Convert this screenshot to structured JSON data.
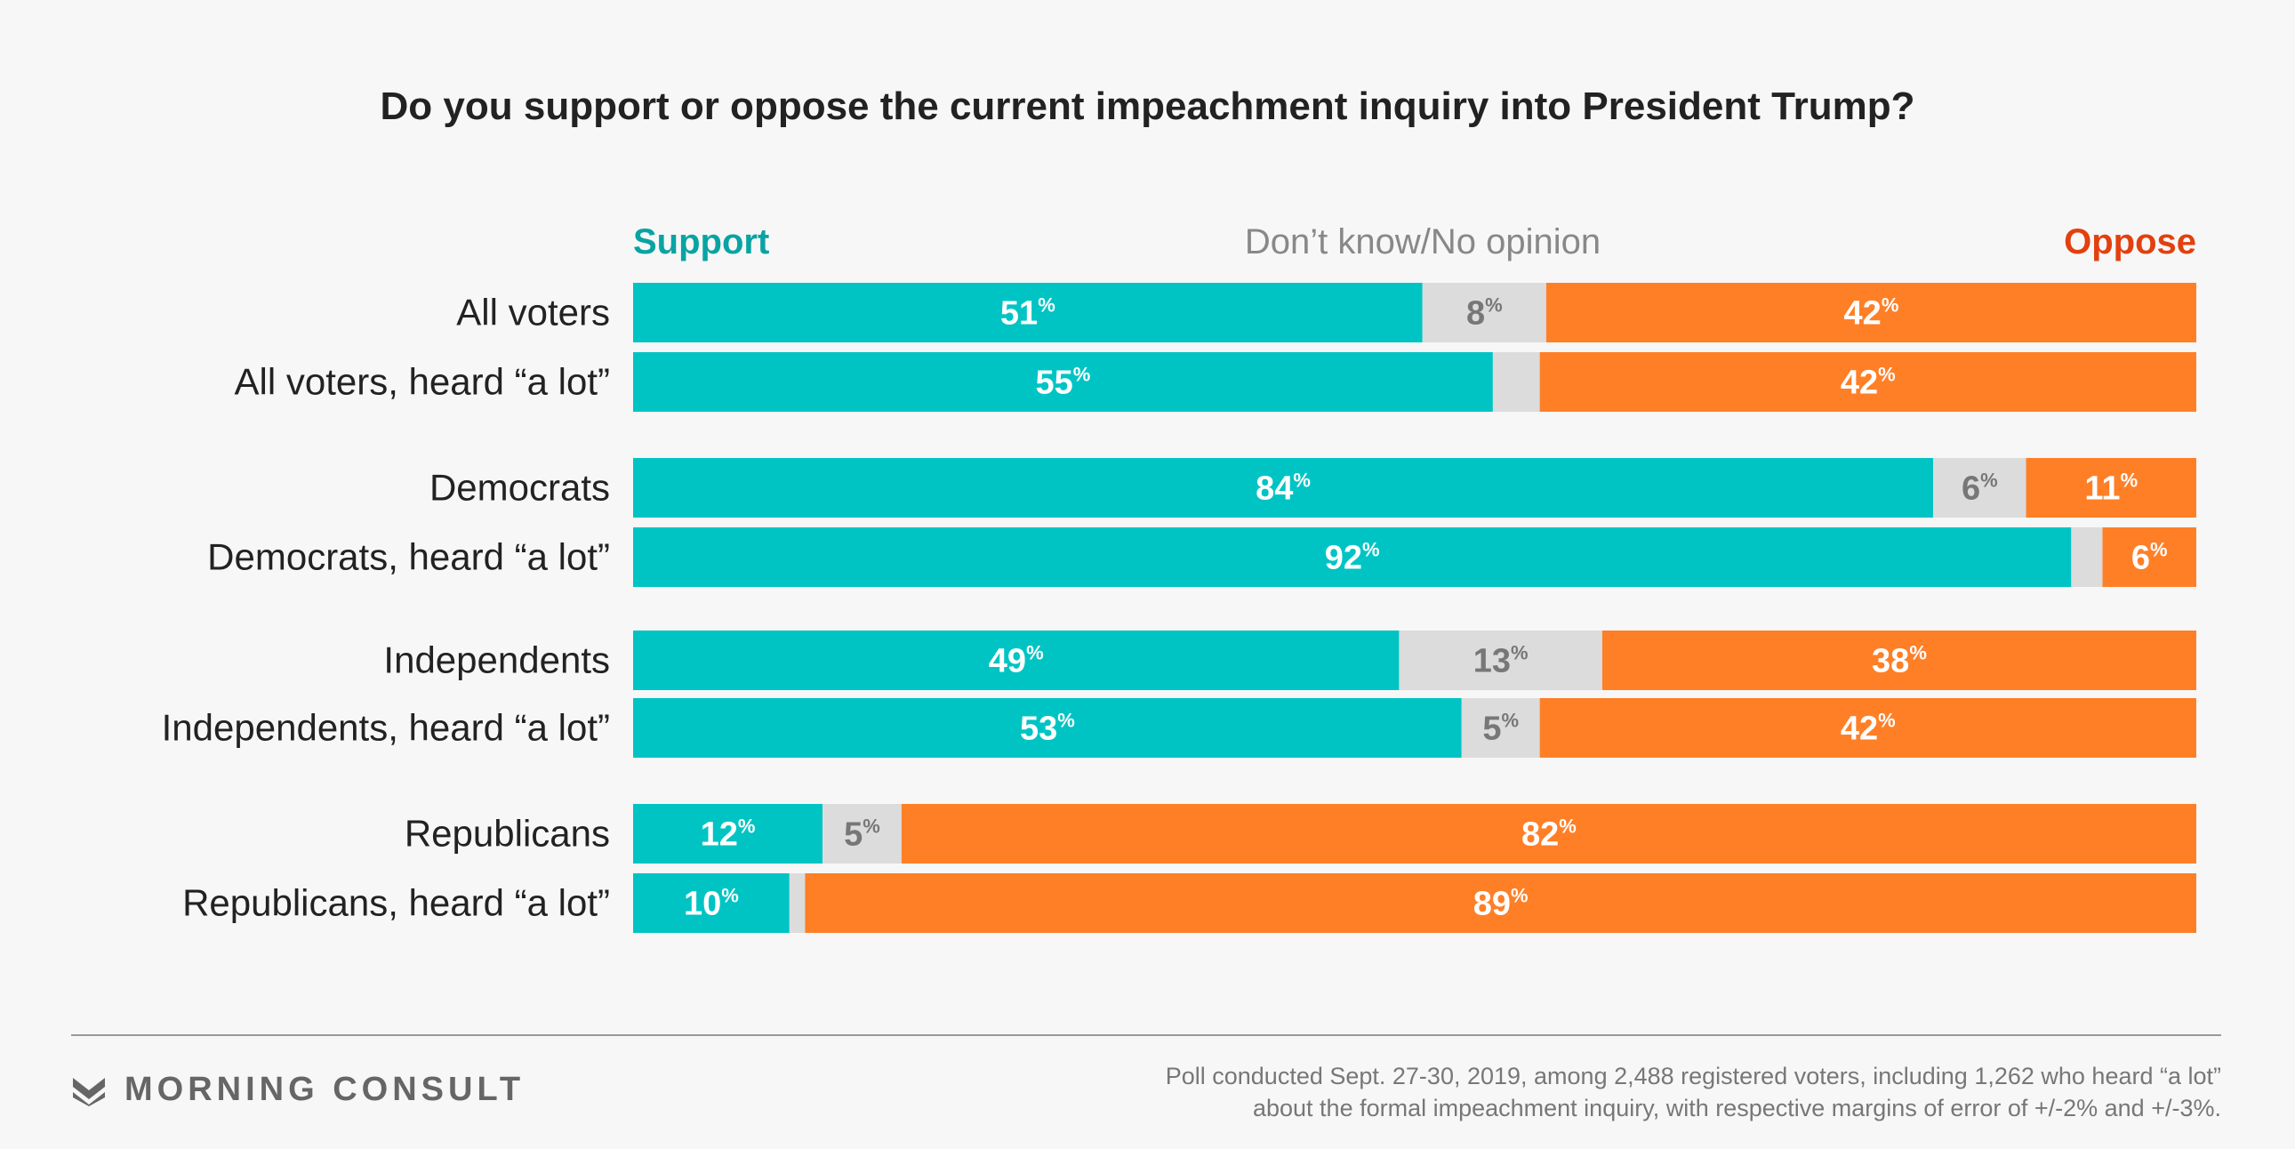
{
  "chart_data": {
    "type": "bar",
    "orientation": "horizontal",
    "stacked": true,
    "percent_suffix": "%",
    "title": "Do you support or oppose the current impeachment inquiry into President Trump?",
    "legend": [
      {
        "name": "Support",
        "color": "#00c4c4",
        "text_color": "#0aa3a3"
      },
      {
        "name": "Don’t know/No opinion",
        "color": "#dcdcdc",
        "text_color": "#888888"
      },
      {
        "name": "Oppose",
        "color": "#ff7f27",
        "text_color": "#e2400e"
      }
    ],
    "categories": [
      "All voters",
      "All voters, heard “a lot”",
      "Democrats",
      "Democrats, heard “a lot”",
      "Independents",
      "Independents, heard “a lot”",
      "Republicans",
      "Republicans, heard “a lot”"
    ],
    "series": [
      {
        "name": "Support",
        "values": [
          51,
          55,
          84,
          92,
          49,
          53,
          12,
          10
        ]
      },
      {
        "name": "Don’t know/No opinion",
        "values": [
          8,
          3,
          6,
          2,
          13,
          5,
          5,
          1
        ]
      },
      {
        "name": "Oppose",
        "values": [
          42,
          42,
          11,
          6,
          38,
          42,
          82,
          89
        ]
      }
    ],
    "show_label": [
      [
        true,
        true,
        true
      ],
      [
        true,
        false,
        true
      ],
      [
        true,
        true,
        true
      ],
      [
        true,
        false,
        true
      ],
      [
        true,
        true,
        true
      ],
      [
        true,
        true,
        true
      ],
      [
        true,
        true,
        true
      ],
      [
        true,
        false,
        true
      ]
    ],
    "xlim": [
      0,
      100
    ]
  },
  "brand": "MORNING CONSULT",
  "footnote": [
    "Poll conducted Sept. 27-30, 2019, among 2,488 registered voters, including 1,262 who heard “a lot”",
    "about the formal impeachment inquiry, with respective margins of error of +/-2% and +/-3%."
  ]
}
